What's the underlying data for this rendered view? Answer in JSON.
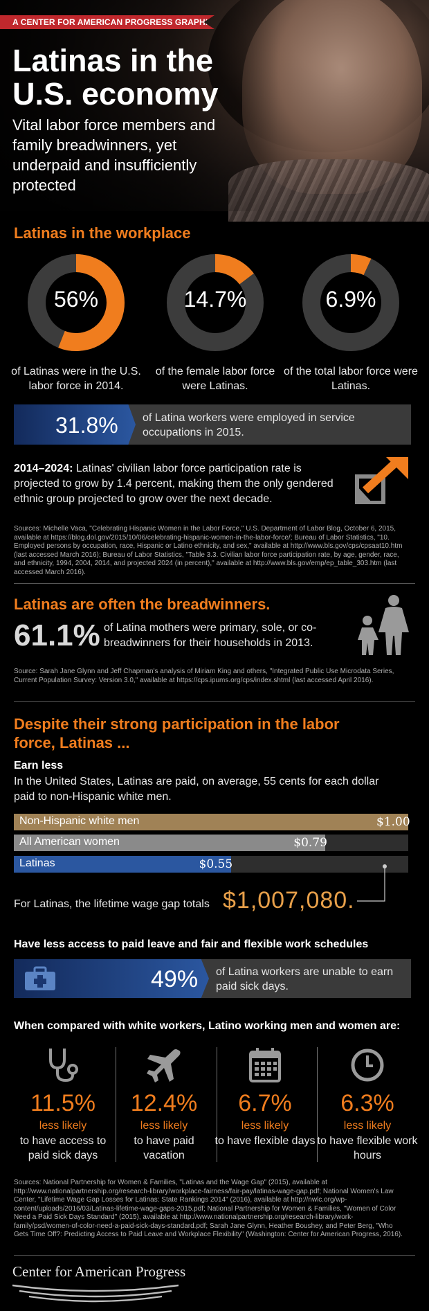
{
  "header": {
    "ribbon": "A CENTER FOR AMERICAN PROGRESS GRAPHIC",
    "title": "Latinas in the U.S. economy",
    "subtitle": "Vital labor force members and family breadwinners, yet underpaid and insufficiently protected"
  },
  "workplace": {
    "heading": "Latinas in the workplace",
    "donuts": [
      {
        "value": "56%",
        "fraction": 0.56,
        "caption": "of Latinas were in the U.S. labor force in 2014."
      },
      {
        "value": "14.7%",
        "fraction": 0.147,
        "caption": "of the female labor force were Latinas."
      },
      {
        "value": "6.9%",
        "fraction": 0.069,
        "caption": "of the total labor force were Latinas."
      }
    ],
    "service": {
      "value": "31.8%",
      "text": "of Latina workers were employed in service occupations in 2015."
    },
    "projection": {
      "lead": "2014–2024:",
      "text": " Latinas' civilian labor force participation rate is projected to grow by 1.4 percent, making them the only gendered ethnic group projected to grow over the next decade."
    },
    "sources": "Sources: Michelle Vaca, \"Celebrating Hispanic Women in the Labor Force,\" U.S. Department of Labor Blog, October 6, 2015, available at https://blog.dol.gov/2015/10/06/celebrating-hispanic-women-in-the-labor-force/; Bureau of Labor Statistics, \"10. Employed persons by occupation, race, Hispanic or Latino ethnicity, and sex,\" available at http://www.bls.gov/cps/cpsaat10.htm (last accessed March 2016); Bureau of Labor Statistics, \"Table 3.3. Civilian labor force participation rate, by age, gender, race, and ethnicity, 1994, 2004, 2014, and projected 2024 (in percent),\" available at http://www.bls.gov/emp/ep_table_303.htm (last accessed March 2016)."
  },
  "breadwinners": {
    "heading": "Latinas are often the breadwinners.",
    "value": "61.1%",
    "text": "of Latina mothers were primary, sole, or co-breadwinners for their households in 2013.",
    "sources": "Source: Sarah Jane Glynn and Jeff Chapman's analysis of Miriam King and others, \"Integrated Public Use Microdata Series, Current Population Survey: Version 3.0,\" available at https://cps.ipums.org/cps/index.shtml (last accessed April 2016)."
  },
  "despite": {
    "heading": "Despite their strong participation in the labor force, Latinas ...",
    "earn_heading": "Earn less",
    "earn_text": "In the United States, Latinas are paid, on average, 55 cents for each dollar paid to non-Hispanic white men.",
    "wage_bars": [
      {
        "label": "Non-Hispanic white men",
        "amount": "$1.00",
        "value": 1.0,
        "color": "#a08256"
      },
      {
        "label": "All American women",
        "amount": "$0.79",
        "value": 0.79,
        "color": "#8a8a8a"
      },
      {
        "label": "Latinas",
        "amount": "$0.55",
        "value": 0.55,
        "color": "#2b57a0"
      }
    ],
    "gap_text": "For Latinas, the lifetime wage gap totals",
    "gap_value": "$1,007,080.",
    "leave_heading": "Have less access to paid leave and fair and flexible work schedules",
    "sick": {
      "value": "49%",
      "text": "of Latina workers are unable to earn paid sick days."
    },
    "compare_heading": "When compared with white workers, Latino working men and women are:",
    "columns": [
      {
        "icon": "stethoscope-icon",
        "value": "11.5%",
        "less": "less likely",
        "text": "to have access to paid sick days"
      },
      {
        "icon": "airplane-icon",
        "value": "12.4%",
        "less": "less likely",
        "text": "to have paid vacation"
      },
      {
        "icon": "calendar-icon",
        "value": "6.7%",
        "less": "less likely",
        "text": "to have flexible days"
      },
      {
        "icon": "clock-icon",
        "value": "6.3%",
        "less": "less likely",
        "text": "to have flexible work hours"
      }
    ],
    "sources": "Sources: National Partnership for Women & Families, \"Latinas and the Wage Gap\" (2015), available at http://www.nationalpartnership.org/research-library/workplace-fairness/fair-pay/latinas-wage-gap.pdf; National Women's Law Center, \"Lifetime Wage Gap Losses for Latinas: State Rankings 2014\" (2016), available at http://nwlc.org/wp-content/uploads/2016/03/Latinas-lifetime-wage-gaps-2015.pdf; National Partnership for Women & Families, \"Women of Color Need a Paid Sick Days Standard\" (2015), available at http://www.nationalpartnership.org/research-library/work-family/psd/women-of-color-need-a-paid-sick-days-standard.pdf; Sarah Jane Glynn, Heather Boushey, and Peter Berg, \"Who Gets Time Off?: Predicting Access to Paid Leave and Workplace Flexibility\" (Washington: Center for American Progress, 2016)."
  },
  "footer": {
    "logo": "Center for American Progress"
  },
  "colors": {
    "orange": "#f07d1e",
    "blue": "#2b57a0",
    "gold": "#e8a04a",
    "ring_bg": "#3c3c3c"
  }
}
